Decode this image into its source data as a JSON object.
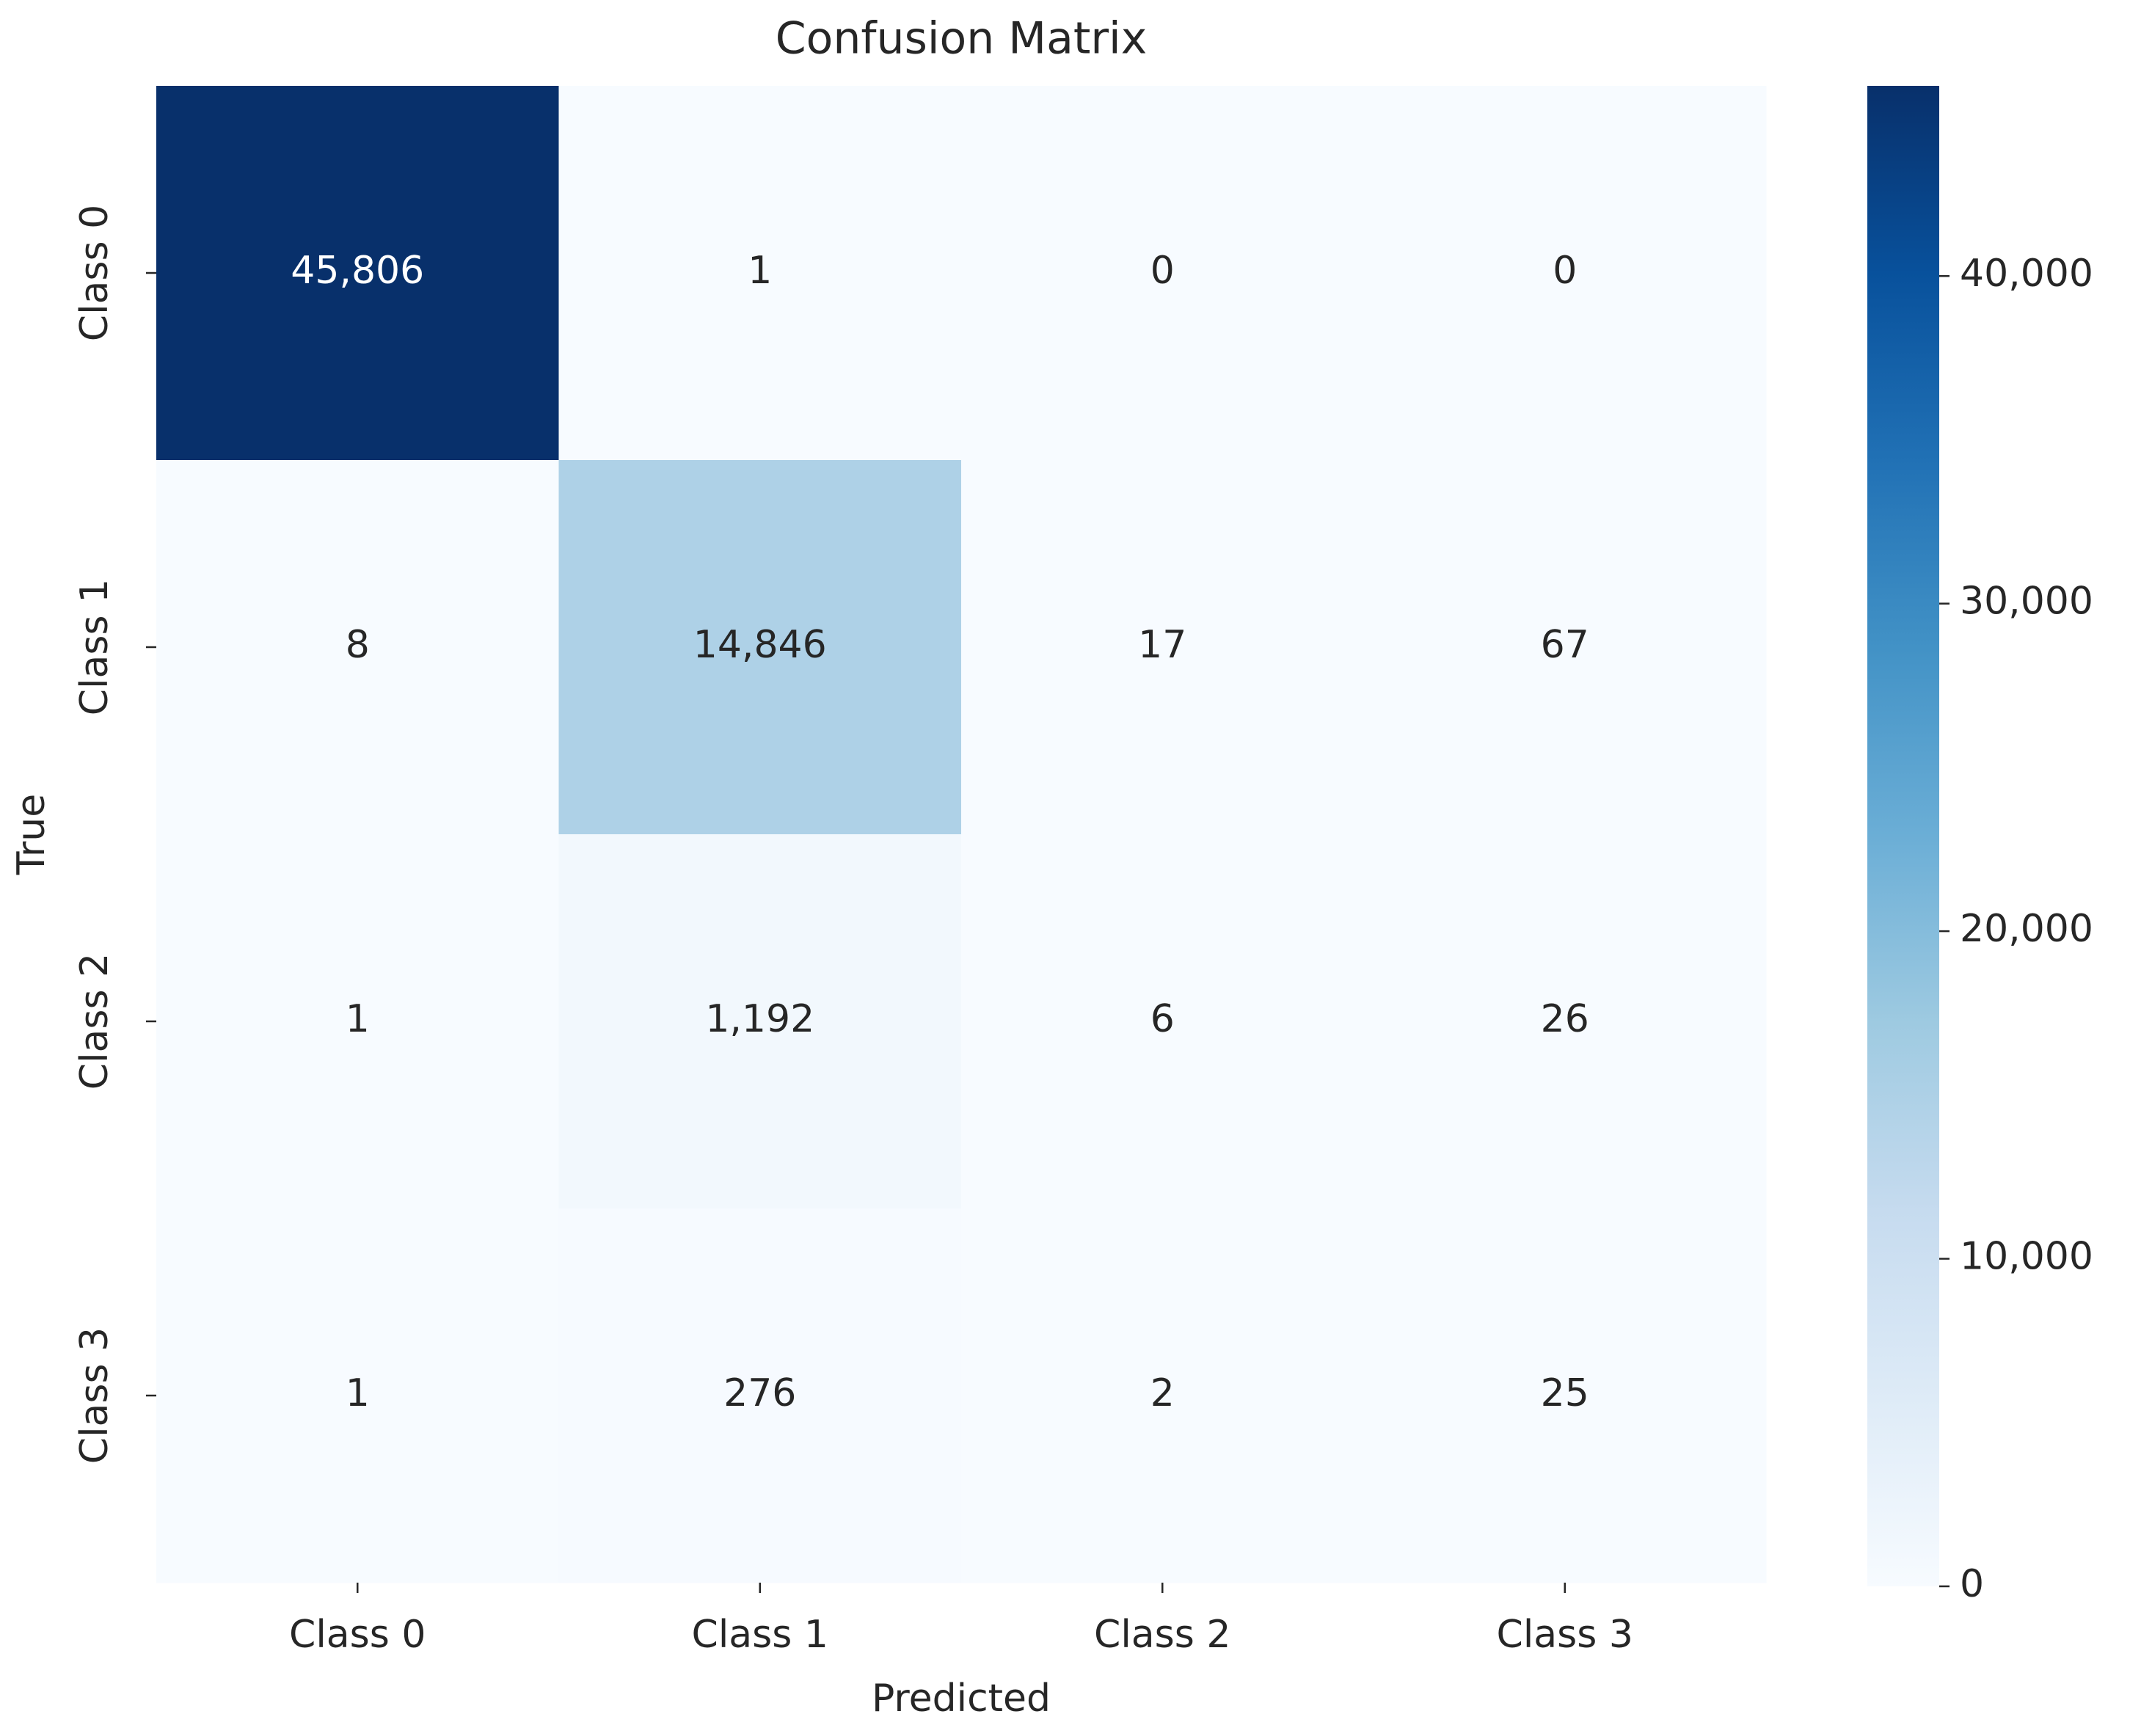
{
  "chart_data": {
    "type": "heatmap",
    "title": "Confusion Matrix",
    "x_label": "Predicted",
    "y_label": "True",
    "x_categories": [
      "Class 0",
      "Class 1",
      "Class 2",
      "Class 3"
    ],
    "y_categories": [
      "Class 0",
      "Class 1",
      "Class 2",
      "Class 3"
    ],
    "values": [
      [
        45806,
        1,
        0,
        0
      ],
      [
        8,
        14846,
        17,
        67
      ],
      [
        1,
        1192,
        6,
        26
      ],
      [
        1,
        276,
        2,
        25
      ]
    ],
    "value_labels": [
      [
        "45,806",
        "1",
        "0",
        "0"
      ],
      [
        "8",
        "14,846",
        "17",
        "67"
      ],
      [
        "1",
        "1,192",
        "6",
        "26"
      ],
      [
        "1",
        "276",
        "2",
        "25"
      ]
    ],
    "colormap": [
      "#f7fbff",
      "#deebf7",
      "#c6dbef",
      "#9ecae1",
      "#6baed6",
      "#4292c6",
      "#2171b5",
      "#08519c",
      "#08306b"
    ],
    "clim": [
      0,
      45806
    ],
    "cticks": [
      0,
      {
        "value": 10000,
        "label": "10,000"
      },
      {
        "value": 20000,
        "label": "20,000"
      },
      {
        "value": 30000,
        "label": "30,000"
      },
      {
        "value": 40000,
        "label": "40,000"
      }
    ]
  }
}
